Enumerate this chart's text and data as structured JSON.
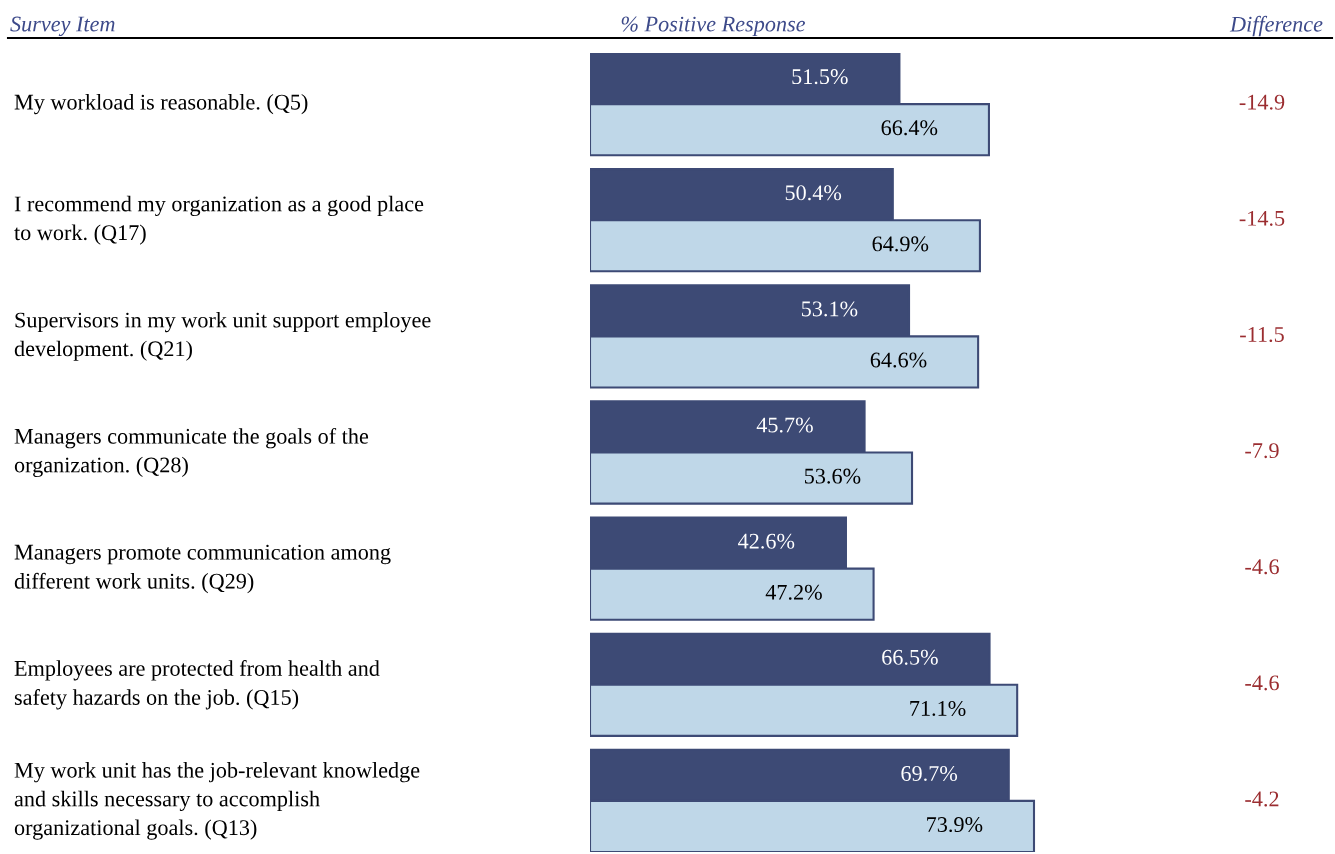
{
  "chart_data": {
    "type": "bar",
    "orientation": "horizontal",
    "data_labels": true,
    "ylabel": "Survey Item",
    "xlabel": "% Positive Response",
    "categories": [
      "My workload is reasonable. (Q5)",
      "I recommend my organization as a good place\nto work. (Q17)",
      "Supervisors in my work unit support employee\ndevelopment. (Q21)",
      "Managers communicate the goals of the\norganization. (Q28)",
      "Managers promote communication among\ndifferent work units. (Q29)",
      "Employees are protected from health and\nsafety hazards on the job. (Q15)",
      "My work unit has the job-relevant knowledge\nand skills necessary to accomplish\norganizational goals. (Q13)"
    ],
    "series": [
      {
        "color": "#3d4a75",
        "values": [
          51.5,
          50.4,
          53.1,
          45.7,
          42.6,
          66.5,
          69.7
        ],
        "value_labels": [
          "51.5%",
          "50.4%",
          "53.1%",
          "45.7%",
          "42.6%",
          "66.5%",
          "69.7%"
        ]
      },
      {
        "color": "#bfd7e8",
        "values": [
          66.4,
          64.9,
          64.6,
          53.6,
          47.2,
          71.1,
          73.9
        ],
        "value_labels": [
          "66.4%",
          "64.9%",
          "64.6%",
          "53.6%",
          "47.2%",
          "71.1%",
          "73.9%"
        ]
      }
    ],
    "annotations": [
      "Difference",
      "-14.9",
      "-14.5",
      "-11.5",
      "-7.9",
      "-4.6",
      "-4.6",
      "-4.2"
    ]
  }
}
